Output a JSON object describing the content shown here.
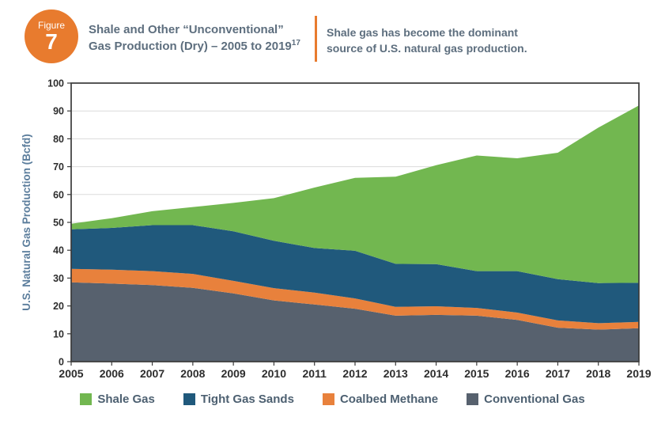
{
  "figure_badge": {
    "label": "Figure",
    "number": "7",
    "color": "#e87b2e"
  },
  "header": {
    "title_line1": "Shale and Other “Unconventional”",
    "title_line2": "Gas Production (Dry) – 2005 to 2019",
    "title_superscript": "17",
    "subtitle_line1": "Shale gas has become the dominant",
    "subtitle_line2": "source of U.S. natural gas production.",
    "accent_color": "#e87b2e",
    "text_color": "#5d6e7e"
  },
  "chart_data": {
    "type": "area",
    "stacked": true,
    "title": "Shale and Other “Unconventional” Gas Production (Dry) – 2005 to 2019",
    "xlabel": "",
    "ylabel": "U.S. Natural Gas Production (Bcfd)",
    "ylim": [
      0,
      100
    ],
    "ytick_step": 10,
    "grid": true,
    "legend_position": "bottom",
    "x": [
      2005,
      2006,
      2007,
      2008,
      2009,
      2010,
      2011,
      2012,
      2013,
      2014,
      2015,
      2016,
      2017,
      2018,
      2019
    ],
    "series": [
      {
        "name": "Conventional Gas",
        "color": "#57616e",
        "values": [
          28.5,
          28.0,
          27.5,
          26.5,
          24.5,
          22.0,
          20.5,
          19.0,
          16.5,
          16.8,
          16.5,
          15.0,
          12.2,
          11.5,
          12.0
        ]
      },
      {
        "name": "Coalbed Methane",
        "color": "#e8813c",
        "values": [
          4.8,
          5.0,
          5.0,
          5.0,
          4.5,
          4.4,
          4.3,
          3.7,
          3.2,
          3.1,
          2.8,
          2.6,
          2.6,
          2.3,
          2.3
        ]
      },
      {
        "name": "Tight Gas Sands",
        "color": "#20597c",
        "values": [
          14.2,
          15.0,
          16.5,
          17.5,
          17.8,
          17.0,
          16.0,
          17.1,
          15.4,
          15.1,
          13.2,
          14.9,
          14.8,
          14.4,
          14.0
        ]
      },
      {
        "name": "Shale Gas",
        "color": "#72b750",
        "values": [
          2.0,
          3.5,
          5.0,
          6.5,
          10.2,
          15.3,
          21.7,
          26.2,
          31.3,
          35.5,
          41.5,
          40.5,
          45.4,
          55.8,
          63.7
        ]
      }
    ],
    "totals": [
      49.5,
      51.5,
      54.0,
      55.5,
      57.0,
      58.7,
      62.5,
      66.0,
      66.4,
      70.5,
      74.0,
      73.0,
      75.0,
      84.0,
      92.0
    ],
    "axis_colors": {
      "grid": "#dcdcdc",
      "frame": "#3a3a3a",
      "tick_text": "#2d2d2d",
      "ylabel_text": "#5b7d9c"
    }
  },
  "legend": {
    "items": [
      {
        "label": "Shale Gas",
        "color": "#72b750"
      },
      {
        "label": "Tight Gas Sands",
        "color": "#20597c"
      },
      {
        "label": "Coalbed Methane",
        "color": "#e8813c"
      },
      {
        "label": "Conventional Gas",
        "color": "#57616e"
      }
    ]
  }
}
